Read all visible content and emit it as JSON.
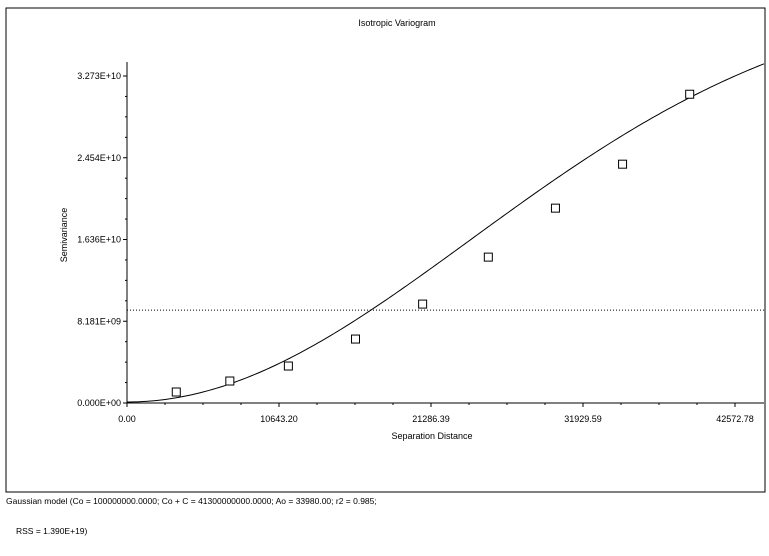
{
  "chart_data": {
    "type": "scatter",
    "title": "Isotropic Variogram",
    "xlabel": "Separation Distance",
    "ylabel": "Semivariance",
    "xlim": [
      0,
      42572.78
    ],
    "ylim": [
      0,
      32725000000
    ],
    "x_ticks": [
      "0.00",
      "10643.20",
      "21286.39",
      "31929.59",
      "42572.78"
    ],
    "y_ticks": [
      "0.000E+00",
      "8.181E+09",
      "1.636E+10",
      "2.454E+10",
      "3.273E+10"
    ],
    "points": [
      {
        "x": 3450,
        "y": 1100000000
      },
      {
        "x": 7200,
        "y": 2200000000
      },
      {
        "x": 11300,
        "y": 3700000000
      },
      {
        "x": 16000,
        "y": 6400000000
      },
      {
        "x": 20700,
        "y": 9900000000
      },
      {
        "x": 25300,
        "y": 14600000000
      },
      {
        "x": 30000,
        "y": 19500000000
      },
      {
        "x": 34700,
        "y": 23900000000
      },
      {
        "x": 39400,
        "y": 30900000000
      }
    ],
    "model": {
      "type": "gaussian",
      "nugget": 100000000,
      "sill": 41300000000,
      "range": 33980
    },
    "reference_line_y": 9300000000,
    "grid": false,
    "legend": "none"
  },
  "model_text": {
    "line1": "Gaussian model (Co = 100000000.0000; Co + C = 41300000000.0000; Ao = 33980.00; r2 = 0.985;",
    "line2": "RSS = 1.390E+19)"
  },
  "colors": {
    "points_stroke": "#000000",
    "curve": "#000000",
    "reference_line": "#000000",
    "background": "#ffffff"
  }
}
